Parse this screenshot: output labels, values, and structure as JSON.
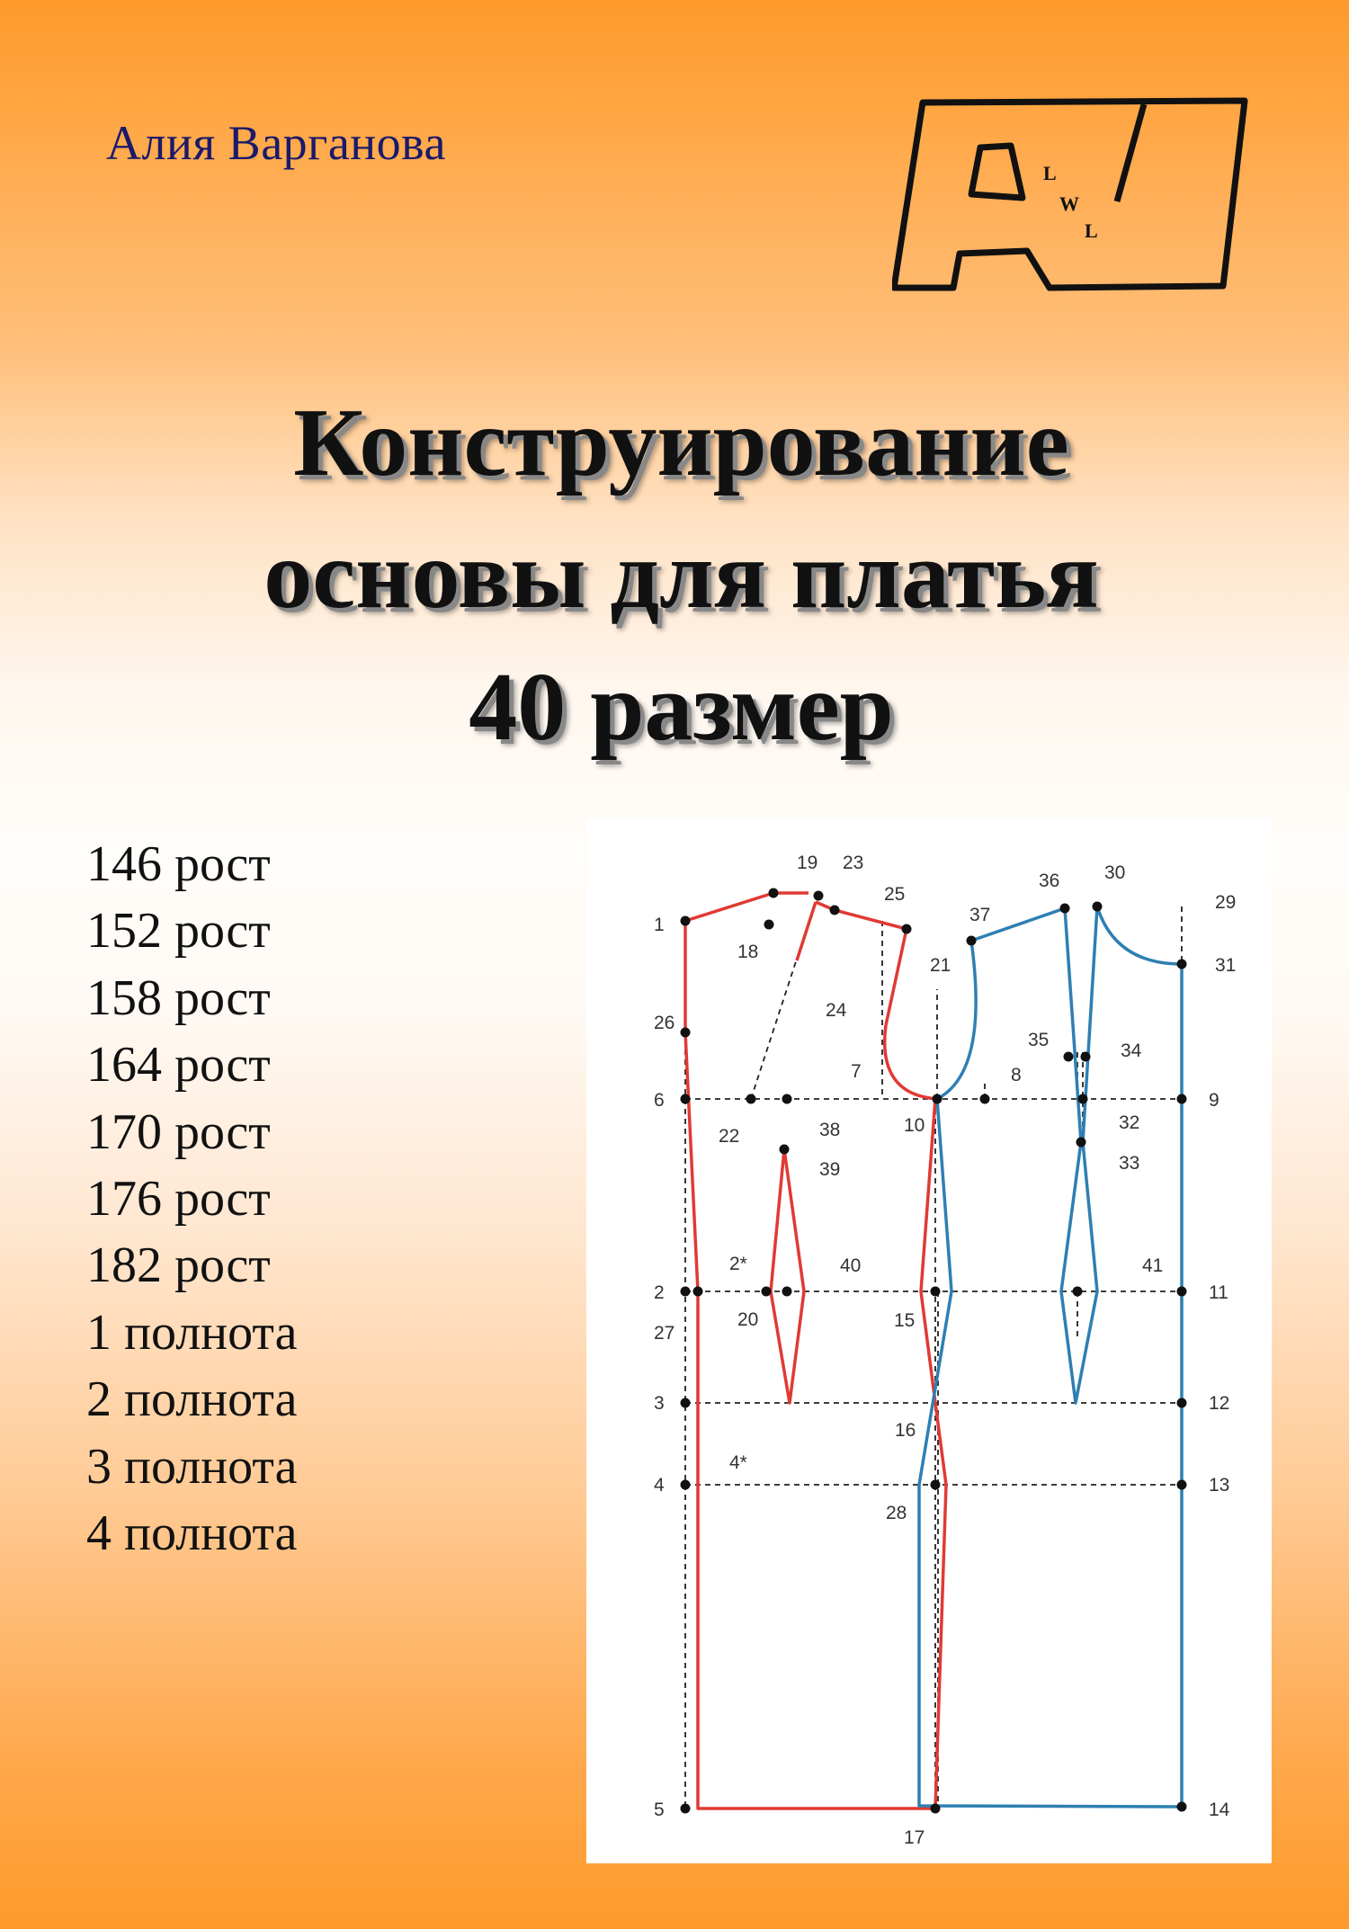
{
  "author": "Алия Варганова",
  "logo": {
    "small_letters": [
      "L",
      "W",
      "L"
    ]
  },
  "title_lines": [
    "Конструирование",
    "основы для платья",
    "40 размер"
  ],
  "specs": [
    "146 рост",
    "152 рост",
    "158 рост",
    "164 рост",
    "170 рост",
    "176 рост",
    "182 рост",
    "1 полнота",
    "2 полнота",
    "3 полнота",
    "4 полнота"
  ],
  "pattern": {
    "colors": {
      "front": "#e03a33",
      "back": "#2e7fb3",
      "guide": "#222222"
    },
    "point_labels": [
      "1",
      "2",
      "3",
      "4",
      "5",
      "6",
      "7",
      "8",
      "9",
      "10",
      "11",
      "12",
      "13",
      "14",
      "15",
      "16",
      "17",
      "18",
      "19",
      "20",
      "21",
      "22",
      "23",
      "24",
      "25",
      "26",
      "27",
      "28",
      "29",
      "30",
      "31",
      "32",
      "33",
      "34",
      "35",
      "36",
      "37",
      "38",
      "39",
      "40",
      "41",
      "2*",
      "4*"
    ]
  }
}
